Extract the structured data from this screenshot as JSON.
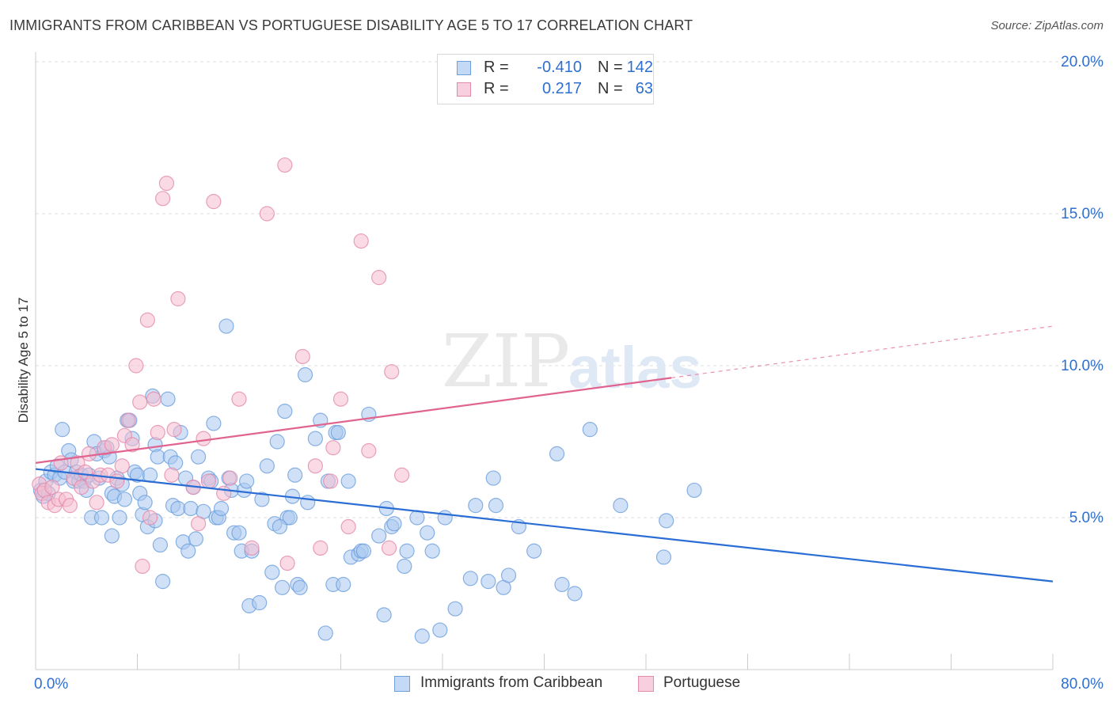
{
  "title": "IMMIGRANTS FROM CARIBBEAN VS PORTUGUESE DISABILITY AGE 5 TO 17 CORRELATION CHART",
  "source": "Source: ZipAtlas.com",
  "watermark": {
    "zip": "ZIP",
    "atlas": "atlas"
  },
  "legend": {
    "r_label": "R =",
    "n_label": "N =",
    "rows": [
      {
        "r": "-0.410",
        "n": "142"
      },
      {
        "r": "0.217",
        "n": "63"
      }
    ]
  },
  "bottom_legend": [
    "Immigrants from Caribbean",
    "Portuguese"
  ],
  "colors": {
    "blue_fill": "#a9c8f0",
    "blue_stroke": "#6d9fdc",
    "blue_line": "#2a6dd4",
    "pink_fill": "#f5bdd0",
    "pink_stroke": "#e48aac",
    "pink_line": "#e0648f",
    "axis_text": "#2f6fce",
    "grid": "#dddddd"
  },
  "chart_data": {
    "type": "scatter",
    "title": "IMMIGRANTS FROM CARIBBEAN VS PORTUGUESE DISABILITY AGE 5 TO 17 CORRELATION CHART",
    "xlabel": "",
    "ylabel": "Disability Age 5 to 17",
    "xlim": [
      0,
      80
    ],
    "ylim": [
      0,
      20
    ],
    "x_tick_labels": [
      "0.0%",
      "80.0%"
    ],
    "y_ticks": [
      5,
      10,
      15,
      20
    ],
    "y_tick_labels": [
      "5.0%",
      "10.0%",
      "15.0%",
      "20.0%"
    ],
    "grid": true,
    "series": [
      {
        "name": "Immigrants from Caribbean",
        "color": "#a9c8f0",
        "points": [
          [
            0.4,
            5.9
          ],
          [
            0.6,
            5.7
          ],
          [
            0.8,
            6.2
          ],
          [
            1.0,
            5.8
          ],
          [
            1.2,
            6.5
          ],
          [
            1.5,
            6.4
          ],
          [
            1.7,
            6.7
          ],
          [
            1.9,
            6.3
          ],
          [
            2.1,
            7.9
          ],
          [
            2.3,
            6.5
          ],
          [
            2.6,
            7.2
          ],
          [
            2.8,
            6.9
          ],
          [
            3.0,
            6.2
          ],
          [
            3.2,
            6.5
          ],
          [
            3.4,
            6.2
          ],
          [
            3.6,
            6.4
          ],
          [
            3.8,
            6.2
          ],
          [
            4.0,
            5.9
          ],
          [
            4.2,
            6.4
          ],
          [
            4.4,
            5.0
          ],
          [
            4.6,
            7.5
          ],
          [
            4.8,
            7.1
          ],
          [
            5.0,
            6.3
          ],
          [
            5.2,
            5.0
          ],
          [
            5.4,
            7.2
          ],
          [
            5.6,
            7.3
          ],
          [
            5.8,
            7.0
          ],
          [
            6.0,
            5.8
          ],
          [
            6.2,
            5.7
          ],
          [
            6.4,
            6.3
          ],
          [
            6.6,
            5.0
          ],
          [
            6.8,
            6.1
          ],
          [
            7.0,
            5.6
          ],
          [
            7.2,
            8.2
          ],
          [
            7.4,
            8.2
          ],
          [
            7.6,
            7.6
          ],
          [
            7.8,
            6.5
          ],
          [
            8.0,
            6.4
          ],
          [
            8.2,
            5.8
          ],
          [
            8.4,
            5.1
          ],
          [
            8.6,
            5.5
          ],
          [
            8.8,
            4.7
          ],
          [
            9.0,
            6.4
          ],
          [
            9.2,
            9.0
          ],
          [
            9.4,
            7.4
          ],
          [
            9.6,
            7.0
          ],
          [
            9.8,
            4.1
          ],
          [
            10.0,
            2.9
          ],
          [
            10.4,
            8.9
          ],
          [
            10.6,
            7.0
          ],
          [
            10.8,
            5.4
          ],
          [
            11.0,
            6.8
          ],
          [
            11.2,
            5.3
          ],
          [
            11.4,
            7.8
          ],
          [
            11.6,
            4.2
          ],
          [
            11.8,
            6.3
          ],
          [
            12.0,
            3.9
          ],
          [
            12.2,
            5.3
          ],
          [
            12.4,
            6.0
          ],
          [
            12.6,
            4.3
          ],
          [
            12.8,
            7.0
          ],
          [
            13.2,
            5.2
          ],
          [
            13.6,
            6.3
          ],
          [
            13.8,
            6.2
          ],
          [
            14.0,
            8.1
          ],
          [
            14.2,
            5.0
          ],
          [
            14.4,
            5.0
          ],
          [
            14.6,
            5.3
          ],
          [
            15.0,
            11.3
          ],
          [
            15.2,
            6.3
          ],
          [
            15.4,
            5.9
          ],
          [
            15.6,
            4.5
          ],
          [
            16.0,
            4.5
          ],
          [
            16.2,
            3.9
          ],
          [
            16.4,
            5.9
          ],
          [
            16.6,
            6.2
          ],
          [
            16.8,
            2.1
          ],
          [
            17.0,
            3.9
          ],
          [
            17.6,
            2.2
          ],
          [
            17.8,
            5.6
          ],
          [
            18.2,
            6.7
          ],
          [
            18.6,
            3.2
          ],
          [
            18.8,
            4.8
          ],
          [
            19.0,
            7.5
          ],
          [
            19.4,
            2.7
          ],
          [
            19.6,
            8.5
          ],
          [
            19.8,
            5.0
          ],
          [
            20.0,
            5.0
          ],
          [
            20.2,
            5.7
          ],
          [
            20.4,
            6.4
          ],
          [
            20.6,
            2.8
          ],
          [
            20.8,
            2.7
          ],
          [
            21.2,
            9.7
          ],
          [
            21.4,
            5.5
          ],
          [
            22.0,
            7.6
          ],
          [
            22.4,
            8.2
          ],
          [
            22.8,
            1.2
          ],
          [
            23.0,
            6.2
          ],
          [
            23.4,
            2.8
          ],
          [
            23.6,
            7.8
          ],
          [
            23.8,
            7.8
          ],
          [
            24.2,
            2.8
          ],
          [
            24.6,
            6.2
          ],
          [
            24.8,
            3.7
          ],
          [
            25.4,
            3.8
          ],
          [
            25.6,
            3.9
          ],
          [
            25.8,
            3.9
          ],
          [
            26.2,
            8.4
          ],
          [
            27.0,
            4.4
          ],
          [
            27.4,
            1.8
          ],
          [
            27.6,
            5.3
          ],
          [
            28.0,
            4.7
          ],
          [
            28.2,
            4.8
          ],
          [
            29.0,
            3.4
          ],
          [
            29.2,
            3.9
          ],
          [
            30.0,
            5.0
          ],
          [
            30.4,
            1.1
          ],
          [
            30.8,
            4.5
          ],
          [
            31.2,
            3.9
          ],
          [
            31.8,
            1.3
          ],
          [
            32.2,
            5.0
          ],
          [
            33.0,
            2.0
          ],
          [
            34.2,
            3.0
          ],
          [
            34.6,
            5.4
          ],
          [
            35.6,
            2.9
          ],
          [
            36.0,
            6.3
          ],
          [
            36.2,
            5.4
          ],
          [
            36.8,
            2.7
          ],
          [
            37.2,
            3.1
          ],
          [
            38.0,
            4.7
          ],
          [
            39.2,
            3.9
          ],
          [
            41.0,
            7.1
          ],
          [
            41.4,
            2.8
          ],
          [
            42.4,
            2.5
          ],
          [
            43.6,
            7.9
          ],
          [
            46.0,
            5.4
          ],
          [
            49.4,
            3.7
          ],
          [
            49.6,
            4.9
          ],
          [
            51.8,
            5.9
          ],
          [
            19.2,
            4.7
          ],
          [
            9.4,
            4.9
          ],
          [
            6.0,
            4.4
          ]
        ]
      },
      {
        "name": "Portuguese",
        "color": "#f5bdd0",
        "points": [
          [
            0.3,
            6.1
          ],
          [
            0.5,
            5.8
          ],
          [
            0.7,
            5.9
          ],
          [
            1.0,
            5.5
          ],
          [
            1.3,
            6.0
          ],
          [
            1.5,
            5.4
          ],
          [
            1.8,
            5.6
          ],
          [
            2.0,
            6.8
          ],
          [
            2.4,
            5.6
          ],
          [
            2.7,
            5.4
          ],
          [
            3.0,
            6.3
          ],
          [
            3.3,
            6.8
          ],
          [
            3.6,
            6.0
          ],
          [
            3.9,
            6.5
          ],
          [
            4.2,
            7.1
          ],
          [
            4.5,
            6.2
          ],
          [
            4.8,
            5.5
          ],
          [
            5.1,
            6.4
          ],
          [
            5.4,
            7.3
          ],
          [
            5.7,
            6.4
          ],
          [
            6.0,
            7.4
          ],
          [
            6.4,
            6.2
          ],
          [
            6.8,
            6.7
          ],
          [
            7.0,
            7.7
          ],
          [
            7.3,
            8.2
          ],
          [
            7.6,
            7.4
          ],
          [
            7.9,
            10.0
          ],
          [
            8.2,
            8.8
          ],
          [
            8.4,
            3.4
          ],
          [
            8.8,
            11.5
          ],
          [
            9.0,
            5.0
          ],
          [
            9.3,
            8.9
          ],
          [
            9.6,
            7.8
          ],
          [
            10.0,
            15.5
          ],
          [
            10.3,
            16.0
          ],
          [
            10.7,
            6.4
          ],
          [
            10.9,
            7.9
          ],
          [
            11.2,
            12.2
          ],
          [
            12.4,
            6.0
          ],
          [
            12.8,
            4.8
          ],
          [
            13.2,
            7.6
          ],
          [
            13.6,
            6.2
          ],
          [
            14.0,
            15.4
          ],
          [
            14.8,
            5.8
          ],
          [
            15.3,
            6.3
          ],
          [
            16.0,
            8.9
          ],
          [
            17.0,
            4.0
          ],
          [
            18.2,
            15.0
          ],
          [
            19.8,
            3.5
          ],
          [
            19.6,
            16.6
          ],
          [
            21.0,
            10.3
          ],
          [
            22.0,
            6.7
          ],
          [
            22.4,
            4.0
          ],
          [
            23.2,
            6.2
          ],
          [
            23.4,
            7.3
          ],
          [
            24.0,
            8.9
          ],
          [
            24.6,
            4.7
          ],
          [
            25.6,
            14.1
          ],
          [
            26.2,
            7.2
          ],
          [
            27.0,
            12.9
          ],
          [
            27.8,
            4.0
          ],
          [
            28.0,
            9.8
          ],
          [
            28.8,
            6.4
          ]
        ]
      }
    ],
    "trend_lines": [
      {
        "series": "Immigrants from Caribbean",
        "x": [
          0,
          80
        ],
        "y": [
          6.6,
          2.9
        ]
      },
      {
        "series": "Portuguese",
        "x": [
          0,
          50
        ],
        "y": [
          6.8,
          9.6
        ],
        "dashed_to": [
          80,
          11.3
        ]
      }
    ]
  }
}
